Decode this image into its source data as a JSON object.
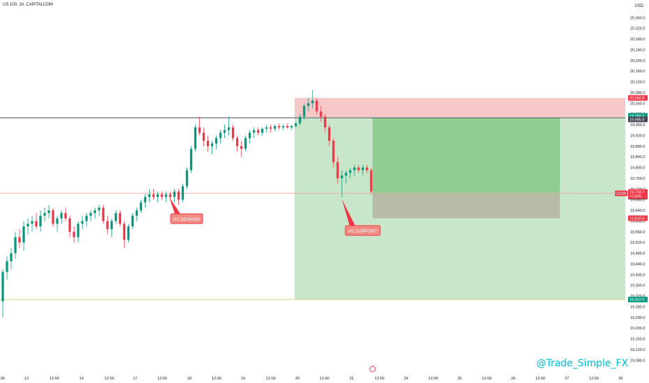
{
  "header": {
    "title": "US 100, 1h, CAPITALCOM",
    "currency": "USD"
  },
  "watermark": "@Trade_Simple_FX",
  "colors": {
    "up": "#089981",
    "down": "#f23645",
    "target_zone": "#c8e6c9",
    "reward_zone": "#4caf50",
    "risk_zone": "#a1887f",
    "supply_zone": "#ef9a9a",
    "label_red": "#f23645",
    "label_green": "#089981",
    "label_dark": "#434651"
  },
  "annotations": {
    "h1_demand": "H1 DEMAND",
    "h1_support": "H1 SUPPORT"
  },
  "price_labels": {
    "zone_top": "20,060.0",
    "zone_bottom": "19,988.6",
    "resistance": "19,985.9",
    "symbol": "US100",
    "current": "19,703.7",
    "change": "+0.43%",
    "entry": "19,701.3",
    "stop": "19,610.5",
    "target": "19,307.0"
  },
  "chart_data": {
    "type": "candlestick",
    "ylim": [
      19060,
      20400
    ],
    "y_ticks": [
      "20,360.0",
      "20,320.0",
      "20,280.0",
      "20,240.0",
      "20,200.0",
      "20,160.0",
      "20,120.0",
      "20,080.0",
      "20,040.0",
      "20,000.0",
      "19,960.0",
      "19,920.0",
      "19,880.0",
      "19,840.0",
      "19,800.0",
      "19,760.0",
      "19,720.0",
      "19,680.0",
      "19,640.0",
      "19,600.0",
      "19,560.0",
      "19,520.0",
      "19,480.0",
      "19,440.0",
      "19,400.0",
      "19,360.0",
      "19,320.0",
      "19,280.0",
      "19,240.0",
      "19,200.0",
      "19,160.0",
      "19,120.0",
      "19,080.0"
    ],
    "x_ticks": [
      "00",
      "13",
      "12:00",
      "14",
      "12:00",
      "17",
      "12:00",
      "18",
      "12:00",
      "19",
      "12:00",
      "20",
      "12:00",
      "21",
      "12:00",
      "24",
      "12:00",
      "25",
      "12:00",
      "26",
      "12:00",
      "27",
      "12:00",
      "28"
    ],
    "resistance_level": 19985.9,
    "current_price": 19703.7,
    "target_level": 19307.0,
    "supply_zone": {
      "from": 19988.6,
      "to": 20060.0
    },
    "position": {
      "entry": 19701.3,
      "stop": 19610.5,
      "target": 19985.9,
      "lower_target": 19307.0
    },
    "candles": [
      [
        19300,
        19420,
        19240,
        19410
      ],
      [
        19410,
        19470,
        19380,
        19450
      ],
      [
        19450,
        19500,
        19420,
        19480
      ],
      [
        19480,
        19560,
        19460,
        19540
      ],
      [
        19540,
        19570,
        19500,
        19520
      ],
      [
        19520,
        19600,
        19490,
        19580
      ],
      [
        19580,
        19610,
        19550,
        19590
      ],
      [
        19590,
        19620,
        19560,
        19600
      ],
      [
        19600,
        19630,
        19570,
        19580
      ],
      [
        19580,
        19640,
        19560,
        19620
      ],
      [
        19620,
        19650,
        19600,
        19630
      ],
      [
        19630,
        19660,
        19610,
        19640
      ],
      [
        19640,
        19650,
        19580,
        19590
      ],
      [
        19590,
        19620,
        19560,
        19610
      ],
      [
        19610,
        19640,
        19590,
        19630
      ],
      [
        19630,
        19650,
        19600,
        19610
      ],
      [
        19610,
        19620,
        19540,
        19560
      ],
      [
        19560,
        19580,
        19520,
        19540
      ],
      [
        19540,
        19600,
        19520,
        19590
      ],
      [
        19590,
        19620,
        19570,
        19600
      ],
      [
        19600,
        19630,
        19580,
        19620
      ],
      [
        19620,
        19640,
        19600,
        19630
      ],
      [
        19630,
        19650,
        19610,
        19640
      ],
      [
        19640,
        19660,
        19620,
        19650
      ],
      [
        19650,
        19660,
        19590,
        19600
      ],
      [
        19600,
        19620,
        19550,
        19570
      ],
      [
        19570,
        19610,
        19540,
        19600
      ],
      [
        19600,
        19640,
        19590,
        19630
      ],
      [
        19630,
        19640,
        19580,
        19590
      ],
      [
        19590,
        19600,
        19500,
        19530
      ],
      [
        19530,
        19590,
        19520,
        19580
      ],
      [
        19580,
        19630,
        19570,
        19620
      ],
      [
        19620,
        19650,
        19600,
        19640
      ],
      [
        19640,
        19680,
        19630,
        19670
      ],
      [
        19670,
        19700,
        19650,
        19690
      ],
      [
        19690,
        19720,
        19670,
        19700
      ],
      [
        19700,
        19720,
        19680,
        19690
      ],
      [
        19690,
        19710,
        19670,
        19700
      ],
      [
        19700,
        19710,
        19680,
        19690
      ],
      [
        19690,
        19710,
        19670,
        19700
      ],
      [
        19700,
        19710,
        19680,
        19690
      ],
      [
        19690,
        19720,
        19670,
        19710
      ],
      [
        19710,
        19720,
        19660,
        19680
      ],
      [
        19680,
        19740,
        19670,
        19730
      ],
      [
        19730,
        19800,
        19720,
        19790
      ],
      [
        19790,
        19880,
        19780,
        19870
      ],
      [
        19870,
        19960,
        19860,
        19950
      ],
      [
        19950,
        19990,
        19920,
        19930
      ],
      [
        19930,
        19950,
        19880,
        19900
      ],
      [
        19900,
        19920,
        19860,
        19880
      ],
      [
        19880,
        19900,
        19850,
        19890
      ],
      [
        19890,
        19920,
        19870,
        19910
      ],
      [
        19910,
        19940,
        19890,
        19930
      ],
      [
        19930,
        19960,
        19910,
        19940
      ],
      [
        19940,
        19990,
        19920,
        19950
      ],
      [
        19950,
        19960,
        19900,
        19910
      ],
      [
        19910,
        19920,
        19860,
        19880
      ],
      [
        19880,
        19900,
        19840,
        19870
      ],
      [
        19870,
        19920,
        19860,
        19910
      ],
      [
        19910,
        19940,
        19890,
        19930
      ],
      [
        19930,
        19950,
        19910,
        19940
      ],
      [
        19940,
        19950,
        19920,
        19930
      ],
      [
        19930,
        19950,
        19920,
        19945
      ],
      [
        19945,
        19960,
        19930,
        19950
      ],
      [
        19950,
        19960,
        19930,
        19945
      ],
      [
        19945,
        19960,
        19935,
        19955
      ],
      [
        19955,
        19965,
        19940,
        19950
      ],
      [
        19950,
        19960,
        19940,
        19955
      ],
      [
        19955,
        19965,
        19945,
        19950
      ],
      [
        19950,
        19960,
        19940,
        19955
      ],
      [
        19955,
        19970,
        19950,
        19965
      ],
      [
        19965,
        20000,
        19960,
        19990
      ],
      [
        19990,
        20040,
        19980,
        20030
      ],
      [
        20030,
        20060,
        20010,
        20040
      ],
      [
        20040,
        20090,
        20020,
        20050
      ],
      [
        20050,
        20060,
        20000,
        20010
      ],
      [
        20010,
        20030,
        19970,
        19990
      ],
      [
        19990,
        20000,
        19930,
        19950
      ],
      [
        19950,
        19960,
        19880,
        19900
      ],
      [
        19900,
        19910,
        19800,
        19820
      ],
      [
        19820,
        19840,
        19740,
        19760
      ],
      [
        19760,
        19790,
        19690,
        19770
      ],
      [
        19770,
        19790,
        19740,
        19780
      ],
      [
        19780,
        19800,
        19760,
        19790
      ],
      [
        19790,
        19810,
        19770,
        19800
      ],
      [
        19800,
        19810,
        19780,
        19790
      ],
      [
        19790,
        19810,
        19770,
        19800
      ],
      [
        19800,
        19810,
        19780,
        19790
      ],
      [
        19790,
        19800,
        19700,
        19710
      ]
    ]
  }
}
